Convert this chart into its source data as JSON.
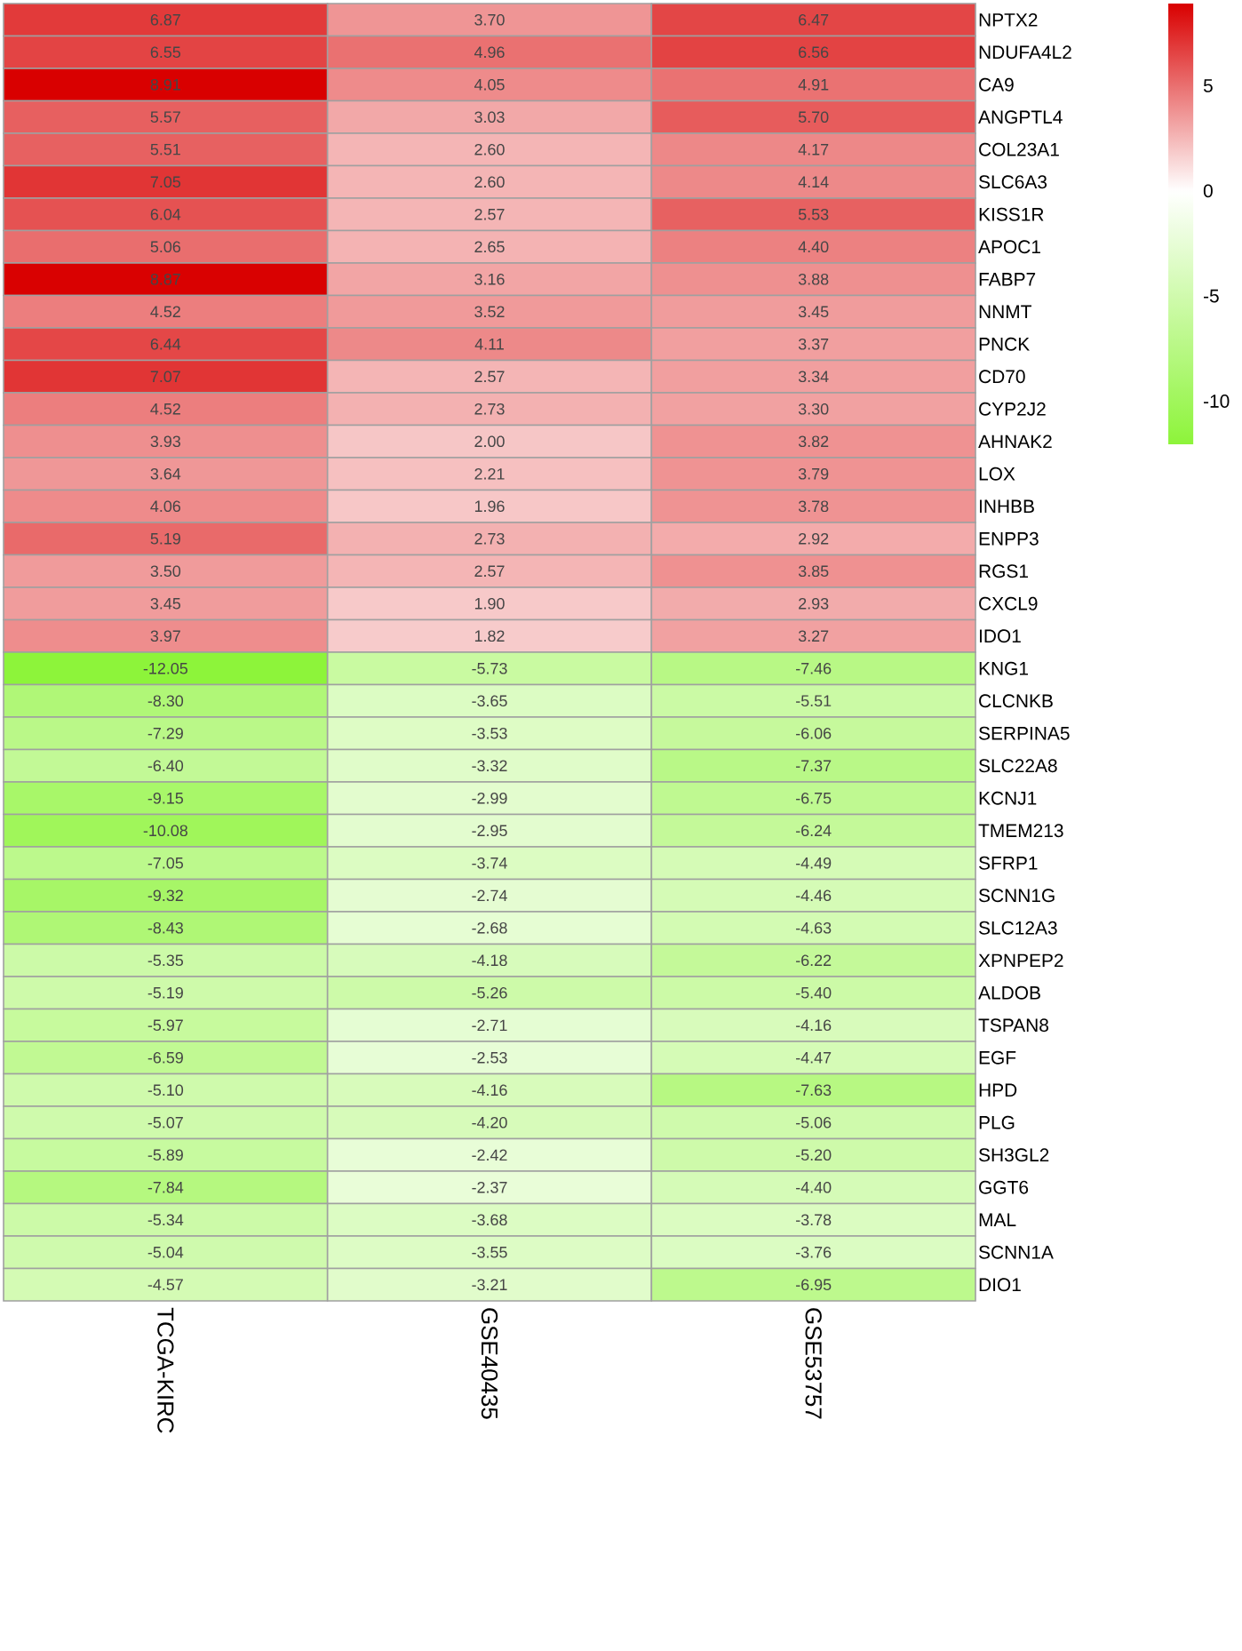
{
  "chart_data": {
    "type": "heatmap",
    "categories": [
      "TCGA-KIRC",
      "GSE40435",
      "GSE53757"
    ],
    "y_categories": [
      "NPTX2",
      "NDUFA4L2",
      "CA9",
      "ANGPTL4",
      "COL23A1",
      "SLC6A3",
      "KISS1R",
      "APOC1",
      "FABP7",
      "NNMT",
      "PNCK",
      "CD70",
      "CYP2J2",
      "AHNAK2",
      "LOX",
      "INHBB",
      "ENPP3",
      "RGS1",
      "CXCL9",
      "IDO1",
      "KNG1",
      "CLCNKB",
      "SERPINA5",
      "SLC22A8",
      "KCNJ1",
      "TMEM213",
      "SFRP1",
      "SCNN1G",
      "SLC12A3",
      "XPNPEP2",
      "ALDOB",
      "TSPAN8",
      "EGF",
      "HPD",
      "PLG",
      "SH3GL2",
      "GGT6",
      "MAL",
      "SCNN1A",
      "DIO1"
    ],
    "cells": [
      [
        6.87,
        3.7,
        6.47
      ],
      [
        6.55,
        4.96,
        6.56
      ],
      [
        8.91,
        4.05,
        4.91
      ],
      [
        5.57,
        3.03,
        5.7
      ],
      [
        5.51,
        2.6,
        4.17
      ],
      [
        7.05,
        2.6,
        4.14
      ],
      [
        6.04,
        2.57,
        5.53
      ],
      [
        5.06,
        2.65,
        4.4
      ],
      [
        8.87,
        3.16,
        3.88
      ],
      [
        4.52,
        3.52,
        3.45
      ],
      [
        6.44,
        4.11,
        3.37
      ],
      [
        7.07,
        2.57,
        3.34
      ],
      [
        4.52,
        2.73,
        3.3
      ],
      [
        3.93,
        2.0,
        3.82
      ],
      [
        3.64,
        2.21,
        3.79
      ],
      [
        4.06,
        1.96,
        3.78
      ],
      [
        5.19,
        2.73,
        2.92
      ],
      [
        3.5,
        2.57,
        3.85
      ],
      [
        3.45,
        1.9,
        2.93
      ],
      [
        3.97,
        1.82,
        3.27
      ],
      [
        -12.05,
        -5.73,
        -7.46
      ],
      [
        -8.3,
        -3.65,
        -5.51
      ],
      [
        -7.29,
        -3.53,
        -6.06
      ],
      [
        -6.4,
        -3.32,
        -7.37
      ],
      [
        -9.15,
        -2.99,
        -6.75
      ],
      [
        -10.08,
        -2.95,
        -6.24
      ],
      [
        -7.05,
        -3.74,
        -4.49
      ],
      [
        -9.32,
        -2.74,
        -4.46
      ],
      [
        -8.43,
        -2.68,
        -4.63
      ],
      [
        -5.35,
        -4.18,
        -6.22
      ],
      [
        -5.19,
        -5.26,
        -5.4
      ],
      [
        -5.97,
        -2.71,
        -4.16
      ],
      [
        -6.59,
        -2.53,
        -4.47
      ],
      [
        -5.1,
        -4.16,
        -7.63
      ],
      [
        -5.07,
        -4.2,
        -5.06
      ],
      [
        -5.89,
        -2.42,
        -5.2
      ],
      [
        -7.84,
        -2.37,
        -4.4
      ],
      [
        -5.34,
        -3.68,
        -3.78
      ],
      [
        -5.04,
        -3.55,
        -3.76
      ],
      [
        -4.57,
        -3.21,
        -6.95
      ]
    ],
    "cell_labels": [
      [
        "6.87",
        "3.70",
        "6.47"
      ],
      [
        "6.55",
        "4.96",
        "6.56"
      ],
      [
        "8.91",
        "4.05",
        "4.91"
      ],
      [
        "5.57",
        "3.03",
        "5.70"
      ],
      [
        "5.51",
        "2.60",
        "4.17"
      ],
      [
        "7.05",
        "2.60",
        "4.14"
      ],
      [
        "6.04",
        "2.57",
        "5.53"
      ],
      [
        "5.06",
        "2.65",
        "4.40"
      ],
      [
        "8.87",
        "3.16",
        "3.88"
      ],
      [
        "4.52",
        "3.52",
        "3.45"
      ],
      [
        "6.44",
        "4.11",
        "3.37"
      ],
      [
        "7.07",
        "2.57",
        "3.34"
      ],
      [
        "4.52",
        "2.73",
        "3.30"
      ],
      [
        "3.93",
        "2.00",
        "3.82"
      ],
      [
        "3.64",
        "2.21",
        "3.79"
      ],
      [
        "4.06",
        "1.96",
        "3.78"
      ],
      [
        "5.19",
        "2.73",
        "2.92"
      ],
      [
        "3.50",
        "2.57",
        "3.85"
      ],
      [
        "3.45",
        "1.90",
        "2.93"
      ],
      [
        "3.97",
        "1.82",
        "3.27"
      ],
      [
        "-12.05",
        "-5.73",
        "-7.46"
      ],
      [
        "-8.30",
        "-3.65",
        "-5.51"
      ],
      [
        "-7.29",
        "-3.53",
        "-6.06"
      ],
      [
        "-6.40",
        "-3.32",
        "-7.37"
      ],
      [
        "-9.15",
        "-2.99",
        "-6.75"
      ],
      [
        "-10.08",
        "-2.95",
        "-6.24"
      ],
      [
        "-7.05",
        "-3.74",
        "-4.49"
      ],
      [
        "-9.32",
        "-2.74",
        "-4.46"
      ],
      [
        "-8.43",
        "-2.68",
        "-4.63"
      ],
      [
        "-5.35",
        "-4.18",
        "-6.22"
      ],
      [
        "-5.19",
        "-5.26",
        "-5.40"
      ],
      [
        "-5.97",
        "-2.71",
        "-4.16"
      ],
      [
        "-6.59",
        "-2.53",
        "-4.47"
      ],
      [
        "-5.10",
        "-4.16",
        "-7.63"
      ],
      [
        "-5.07",
        "-4.20",
        "-5.06"
      ],
      [
        "-5.89",
        "-2.42",
        "-5.20"
      ],
      [
        "-7.84",
        "-2.37",
        "-4.40"
      ],
      [
        "-5.34",
        "-3.68",
        "-3.78"
      ],
      [
        "-5.04",
        "-3.55",
        "-3.76"
      ],
      [
        "-4.57",
        "-3.21",
        "-6.95"
      ]
    ],
    "clim": [
      -12.05,
      8.91
    ],
    "cticks": [
      5,
      0,
      -5,
      -10
    ],
    "colors": [
      "#8df43a",
      "#ffffff",
      "#d90000"
    ]
  }
}
